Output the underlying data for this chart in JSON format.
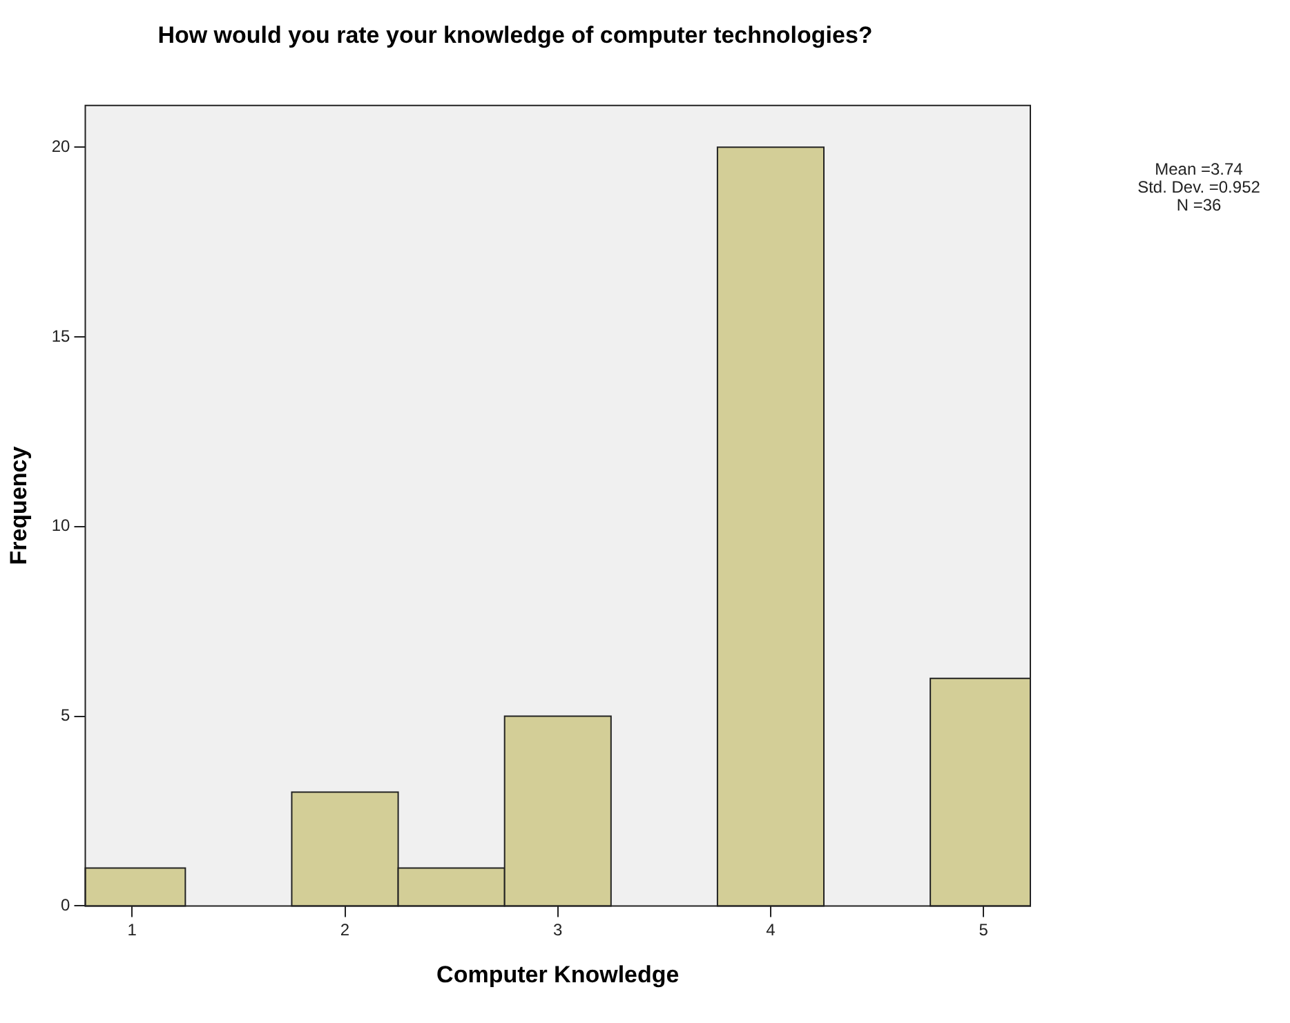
{
  "chart_data": {
    "type": "histogram",
    "title": "How would you rate your knowledge of computer technologies?",
    "xlabel": "Computer Knowledge",
    "ylabel": "Frequency",
    "bins": [
      0.78,
      1.25,
      1.75,
      2.25,
      2.75,
      3.25,
      3.75,
      4.25,
      4.75,
      5.22
    ],
    "values": [
      1,
      0,
      3,
      1,
      5,
      0,
      20,
      0,
      6
    ],
    "color": "#d3ce97",
    "xlim": [
      0.78,
      5.22
    ],
    "xticks": [
      1,
      2,
      3,
      4,
      5
    ],
    "ylim": [
      0,
      21.1
    ],
    "yticks": [
      0,
      5,
      10,
      15,
      20
    ],
    "legend": false,
    "annotations": [
      "Mean =3.74",
      "Std. Dev. =0.952",
      "N =36"
    ]
  }
}
